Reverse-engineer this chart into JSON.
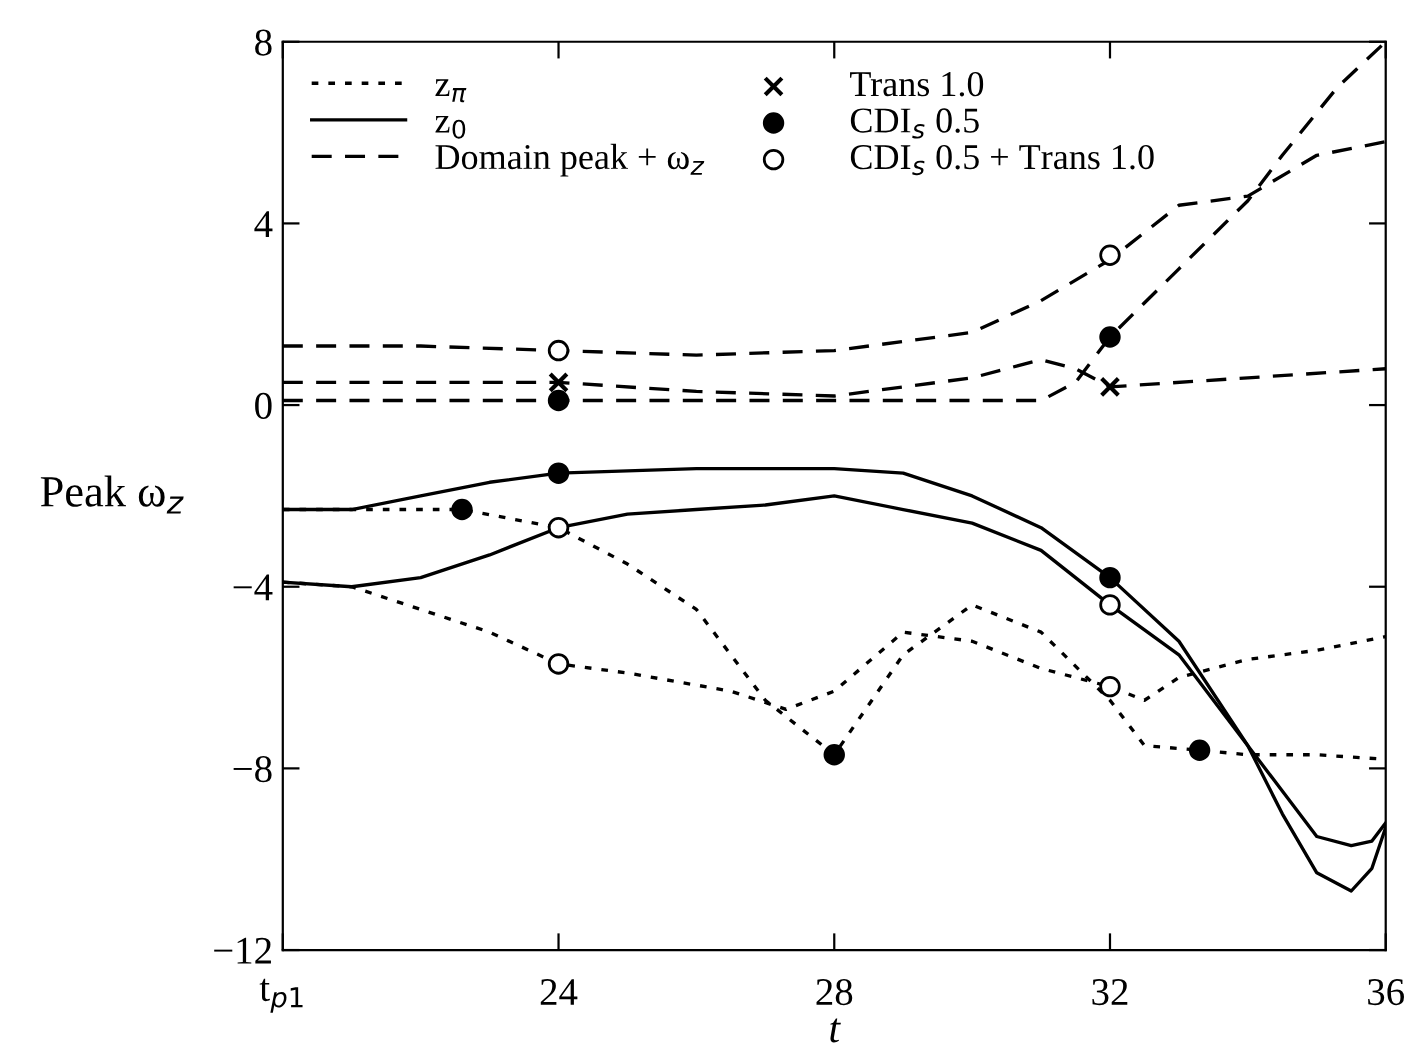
{
  "chart_data": {
    "type": "line",
    "xlabel": "t",
    "ylabel": "Peak ω$_{z}$",
    "xlim": [
      20,
      36
    ],
    "xticks": [
      {
        "value": 20,
        "label": "t$_{p1}$"
      },
      24,
      28,
      32,
      36
    ],
    "ylim": [
      -12,
      8
    ],
    "yticks": [
      -12,
      -8,
      -4,
      0,
      4,
      8
    ],
    "grid": false,
    "legend": "top left",
    "series": [
      {
        "name": "z$_{π}$",
        "line_style": "dotted",
        "marker": "none",
        "color": "#000000",
        "x": [
          20,
          21,
          22.6,
          24,
          25,
          26,
          27,
          28,
          29,
          30,
          31,
          32,
          32.5,
          33.3,
          34,
          35,
          36
        ],
        "values": [
          -2.3,
          -2.3,
          -2.3,
          -2.7,
          -3.5,
          -4.5,
          -6.5,
          -7.7,
          -5.5,
          -4.4,
          -5.0,
          -6.5,
          -7.5,
          -7.6,
          -7.7,
          -7.7,
          -7.8
        ]
      },
      {
        "line_style": "dotted",
        "marker": "none",
        "color": "#000000",
        "x": [
          20,
          21,
          22,
          23,
          24,
          25,
          26.5,
          27.3,
          28,
          29,
          30,
          31,
          32,
          32.5,
          33,
          34,
          35,
          36
        ],
        "values": [
          -3.9,
          -4.0,
          -4.5,
          -5.0,
          -5.7,
          -5.9,
          -6.3,
          -6.7,
          -6.3,
          -5.0,
          -5.2,
          -5.8,
          -6.2,
          -6.5,
          -6.0,
          -5.6,
          -5.4,
          -5.1
        ]
      },
      {
        "name": "z$_{0}$",
        "line_style": "solid",
        "marker": "none",
        "color": "#000000",
        "x": [
          20,
          21,
          22,
          23,
          24,
          26,
          28,
          29,
          30,
          31,
          32,
          33,
          34,
          34.5,
          35,
          35.5,
          35.8,
          36
        ],
        "values": [
          -2.3,
          -2.3,
          -2.0,
          -1.7,
          -1.5,
          -1.4,
          -1.4,
          -1.5,
          -2.0,
          -2.7,
          -3.8,
          -5.2,
          -7.5,
          -9.0,
          -10.3,
          -10.7,
          -10.2,
          -9.3
        ]
      },
      {
        "line_style": "solid",
        "marker": "none",
        "color": "#000000",
        "x": [
          20,
          21,
          22,
          23,
          24,
          25,
          26,
          27,
          28,
          29,
          30,
          31,
          32,
          33,
          34,
          35,
          35.5,
          35.8,
          36
        ],
        "values": [
          -3.9,
          -4.0,
          -3.8,
          -3.3,
          -2.7,
          -2.4,
          -2.3,
          -2.2,
          -2.0,
          -2.3,
          -2.6,
          -3.2,
          -4.4,
          -5.5,
          -7.5,
          -9.5,
          -9.7,
          -9.6,
          -9.2
        ]
      },
      {
        "name": "Domain peak + ω$_{z}$",
        "line_style": "dashed",
        "marker": "none",
        "color": "#000000",
        "x": [
          20,
          22,
          24,
          26,
          28,
          30,
          31,
          32,
          33,
          34,
          35,
          36
        ],
        "values": [
          1.3,
          1.3,
          1.2,
          1.1,
          1.2,
          1.6,
          2.3,
          3.2,
          4.4,
          4.6,
          5.5,
          5.8
        ]
      },
      {
        "line_style": "dashed",
        "marker": "none",
        "color": "#000000",
        "x": [
          20,
          22,
          24,
          26,
          28,
          30,
          31,
          31.5,
          32,
          34,
          36
        ],
        "values": [
          0.5,
          0.5,
          0.5,
          0.3,
          0.2,
          0.6,
          1.0,
          0.8,
          0.4,
          0.6,
          0.8
        ]
      },
      {
        "line_style": "dashed",
        "marker": "none",
        "color": "#000000",
        "x": [
          20,
          22,
          24,
          26,
          28,
          30,
          31,
          31.5,
          32,
          33,
          34,
          34.5,
          35.3,
          36
        ],
        "values": [
          0.1,
          0.1,
          0.1,
          0.1,
          0.1,
          0.1,
          0.1,
          0.5,
          1.5,
          3.0,
          4.5,
          5.5,
          7.0,
          8.0
        ]
      },
      {
        "name": "Trans 1.0",
        "type": "scatter",
        "marker": "cross",
        "color": "#000000",
        "x": [
          24,
          32
        ],
        "values": [
          0.5,
          0.4
        ]
      },
      {
        "name": "CDI$_{s}$ 0.5",
        "type": "scatter",
        "marker": "circle",
        "color": "#000000",
        "x": [
          22.6,
          24,
          24,
          28,
          32,
          32,
          33.3
        ],
        "values": [
          -2.3,
          -1.5,
          0.1,
          -7.7,
          -3.8,
          1.5,
          -7.6
        ]
      },
      {
        "name": "CDI$_{s}$ 0.5 + Trans 1.0",
        "type": "scatter",
        "marker": "circle",
        "color": "#ffffff",
        "x": [
          24,
          24,
          24,
          32,
          32,
          32
        ],
        "values": [
          1.2,
          -2.7,
          -5.7,
          3.3,
          -4.4,
          -6.2
        ]
      }
    ]
  }
}
